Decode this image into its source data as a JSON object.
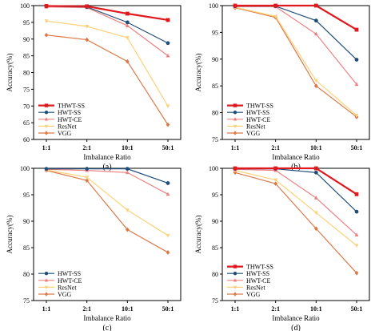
{
  "colors": {
    "THWT-SS": "#e0191f",
    "HWT-SS": "#1f4e79",
    "HWT-CE": "#f08080",
    "ResNet": "#fbd27a",
    "VGG": "#dc7a4a"
  },
  "chart_data": [
    {
      "type": "line",
      "panel_label": "(a)",
      "xlabel": "Imbalance Ratio",
      "ylabel": "Accuracy(%)",
      "categories": [
        "1:1",
        "2:1",
        "10:1",
        "50:1"
      ],
      "ylim": [
        60,
        100
      ],
      "yticks": [
        60,
        65,
        70,
        75,
        80,
        85,
        90,
        95,
        100
      ],
      "legend": "bottom-left",
      "series": [
        {
          "name": "THWT-SS",
          "marker": "square",
          "values": [
            99.9,
            99.8,
            97.6,
            95.7
          ]
        },
        {
          "name": "HWT-SS",
          "marker": "circle",
          "values": [
            99.8,
            99.6,
            95.0,
            88.8
          ]
        },
        {
          "name": "HWT-CE",
          "marker": "triangle-up",
          "values": [
            99.6,
            99.4,
            94.0,
            85.0
          ]
        },
        {
          "name": "ResNet",
          "marker": "triangle-down",
          "values": [
            95.4,
            93.8,
            90.4,
            70.0
          ]
        },
        {
          "name": "VGG",
          "marker": "diamond",
          "values": [
            91.2,
            89.8,
            83.3,
            64.4
          ]
        }
      ]
    },
    {
      "type": "line",
      "panel_label": "(b)",
      "xlabel": "Imbalance Ratio",
      "ylabel": "Accuracy(%)",
      "categories": [
        "1:1",
        "2:1",
        "10:1",
        "50:1"
      ],
      "ylim": [
        75,
        100
      ],
      "yticks": [
        75,
        80,
        85,
        90,
        95,
        100
      ],
      "legend": "bottom-left",
      "series": [
        {
          "name": "THWT-SS",
          "marker": "square",
          "values": [
            100.0,
            100.0,
            100.0,
            95.5
          ]
        },
        {
          "name": "HWT-SS",
          "marker": "circle",
          "values": [
            99.9,
            99.9,
            97.2,
            89.9
          ]
        },
        {
          "name": "HWT-CE",
          "marker": "triangle-up",
          "values": [
            99.8,
            99.8,
            94.7,
            85.3
          ]
        },
        {
          "name": "ResNet",
          "marker": "triangle-down",
          "values": [
            99.7,
            98.0,
            86.0,
            79.5
          ]
        },
        {
          "name": "VGG",
          "marker": "diamond",
          "values": [
            99.6,
            97.8,
            85.0,
            79.2
          ]
        }
      ]
    },
    {
      "type": "line",
      "panel_label": "(c)",
      "xlabel": "Imbalance Ratio",
      "ylabel": "Accuracy(%)",
      "categories": [
        "1:1",
        "2:1",
        "10:1",
        "50:1"
      ],
      "ylim": [
        75,
        100
      ],
      "yticks": [
        75,
        80,
        85,
        90,
        95,
        100
      ],
      "legend": "bottom-left",
      "series": [
        {
          "name": "HWT-SS",
          "marker": "circle",
          "values": [
            99.9,
            99.9,
            99.9,
            97.2
          ]
        },
        {
          "name": "HWT-CE",
          "marker": "triangle-up",
          "values": [
            99.8,
            99.6,
            99.2,
            95.1
          ]
        },
        {
          "name": "ResNet",
          "marker": "triangle-down",
          "values": [
            99.7,
            98.3,
            92.1,
            87.3
          ]
        },
        {
          "name": "VGG",
          "marker": "diamond",
          "values": [
            99.6,
            97.7,
            88.4,
            84.1
          ]
        }
      ]
    },
    {
      "type": "line",
      "panel_label": "(d)",
      "xlabel": "Imbalance Ratio",
      "ylabel": "Accuracy(%)",
      "categories": [
        "1:1",
        "2:1",
        "10:1",
        "50:1"
      ],
      "ylim": [
        75,
        100
      ],
      "yticks": [
        75,
        80,
        85,
        90,
        95,
        100
      ],
      "legend": "bottom-left",
      "series": [
        {
          "name": "THWT-SS",
          "marker": "square",
          "values": [
            100.0,
            100.0,
            100.0,
            95.1
          ]
        },
        {
          "name": "HWT-SS",
          "marker": "circle",
          "values": [
            99.9,
            99.9,
            99.2,
            91.8
          ]
        },
        {
          "name": "HWT-CE",
          "marker": "triangle-up",
          "values": [
            99.8,
            99.6,
            94.4,
            87.4
          ]
        },
        {
          "name": "ResNet",
          "marker": "triangle-down",
          "values": [
            99.6,
            97.8,
            91.6,
            85.4
          ]
        },
        {
          "name": "VGG",
          "marker": "diamond",
          "values": [
            99.2,
            97.1,
            88.6,
            80.2
          ]
        }
      ]
    }
  ]
}
